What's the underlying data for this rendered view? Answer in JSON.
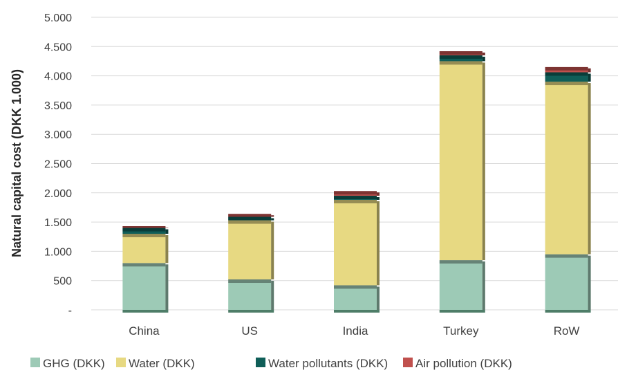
{
  "chart_data": {
    "type": "bar",
    "stacked": true,
    "categories": [
      "China",
      "US",
      "India",
      "Turkey",
      "RoW"
    ],
    "series": [
      {
        "name": "GHG (DKK)",
        "color": "#9dcab6",
        "values": [
          800,
          520,
          420,
          850,
          950
        ]
      },
      {
        "name": "Water (DKK)",
        "color": "#e7d982",
        "values": [
          500,
          1010,
          1460,
          3400,
          2950
        ]
      },
      {
        "name": "Water pollutants (DKK)",
        "color": "#0f5e58",
        "values": [
          100,
          60,
          70,
          100,
          160
        ]
      },
      {
        "name": "Air pollution (DKK)",
        "color": "#c0504d",
        "values": [
          30,
          50,
          80,
          70,
          90
        ]
      }
    ],
    "ylabel": "Natural capital cost (DKK 1.000)",
    "ylim": [
      0,
      5000
    ],
    "ytick_labels": [
      "-",
      "500",
      "1.000",
      "1.500",
      "2.000",
      "2.500",
      "3.000",
      "3.500",
      "4.000",
      "4.500",
      "5.000"
    ],
    "grid": true,
    "legend_position": "bottom"
  }
}
